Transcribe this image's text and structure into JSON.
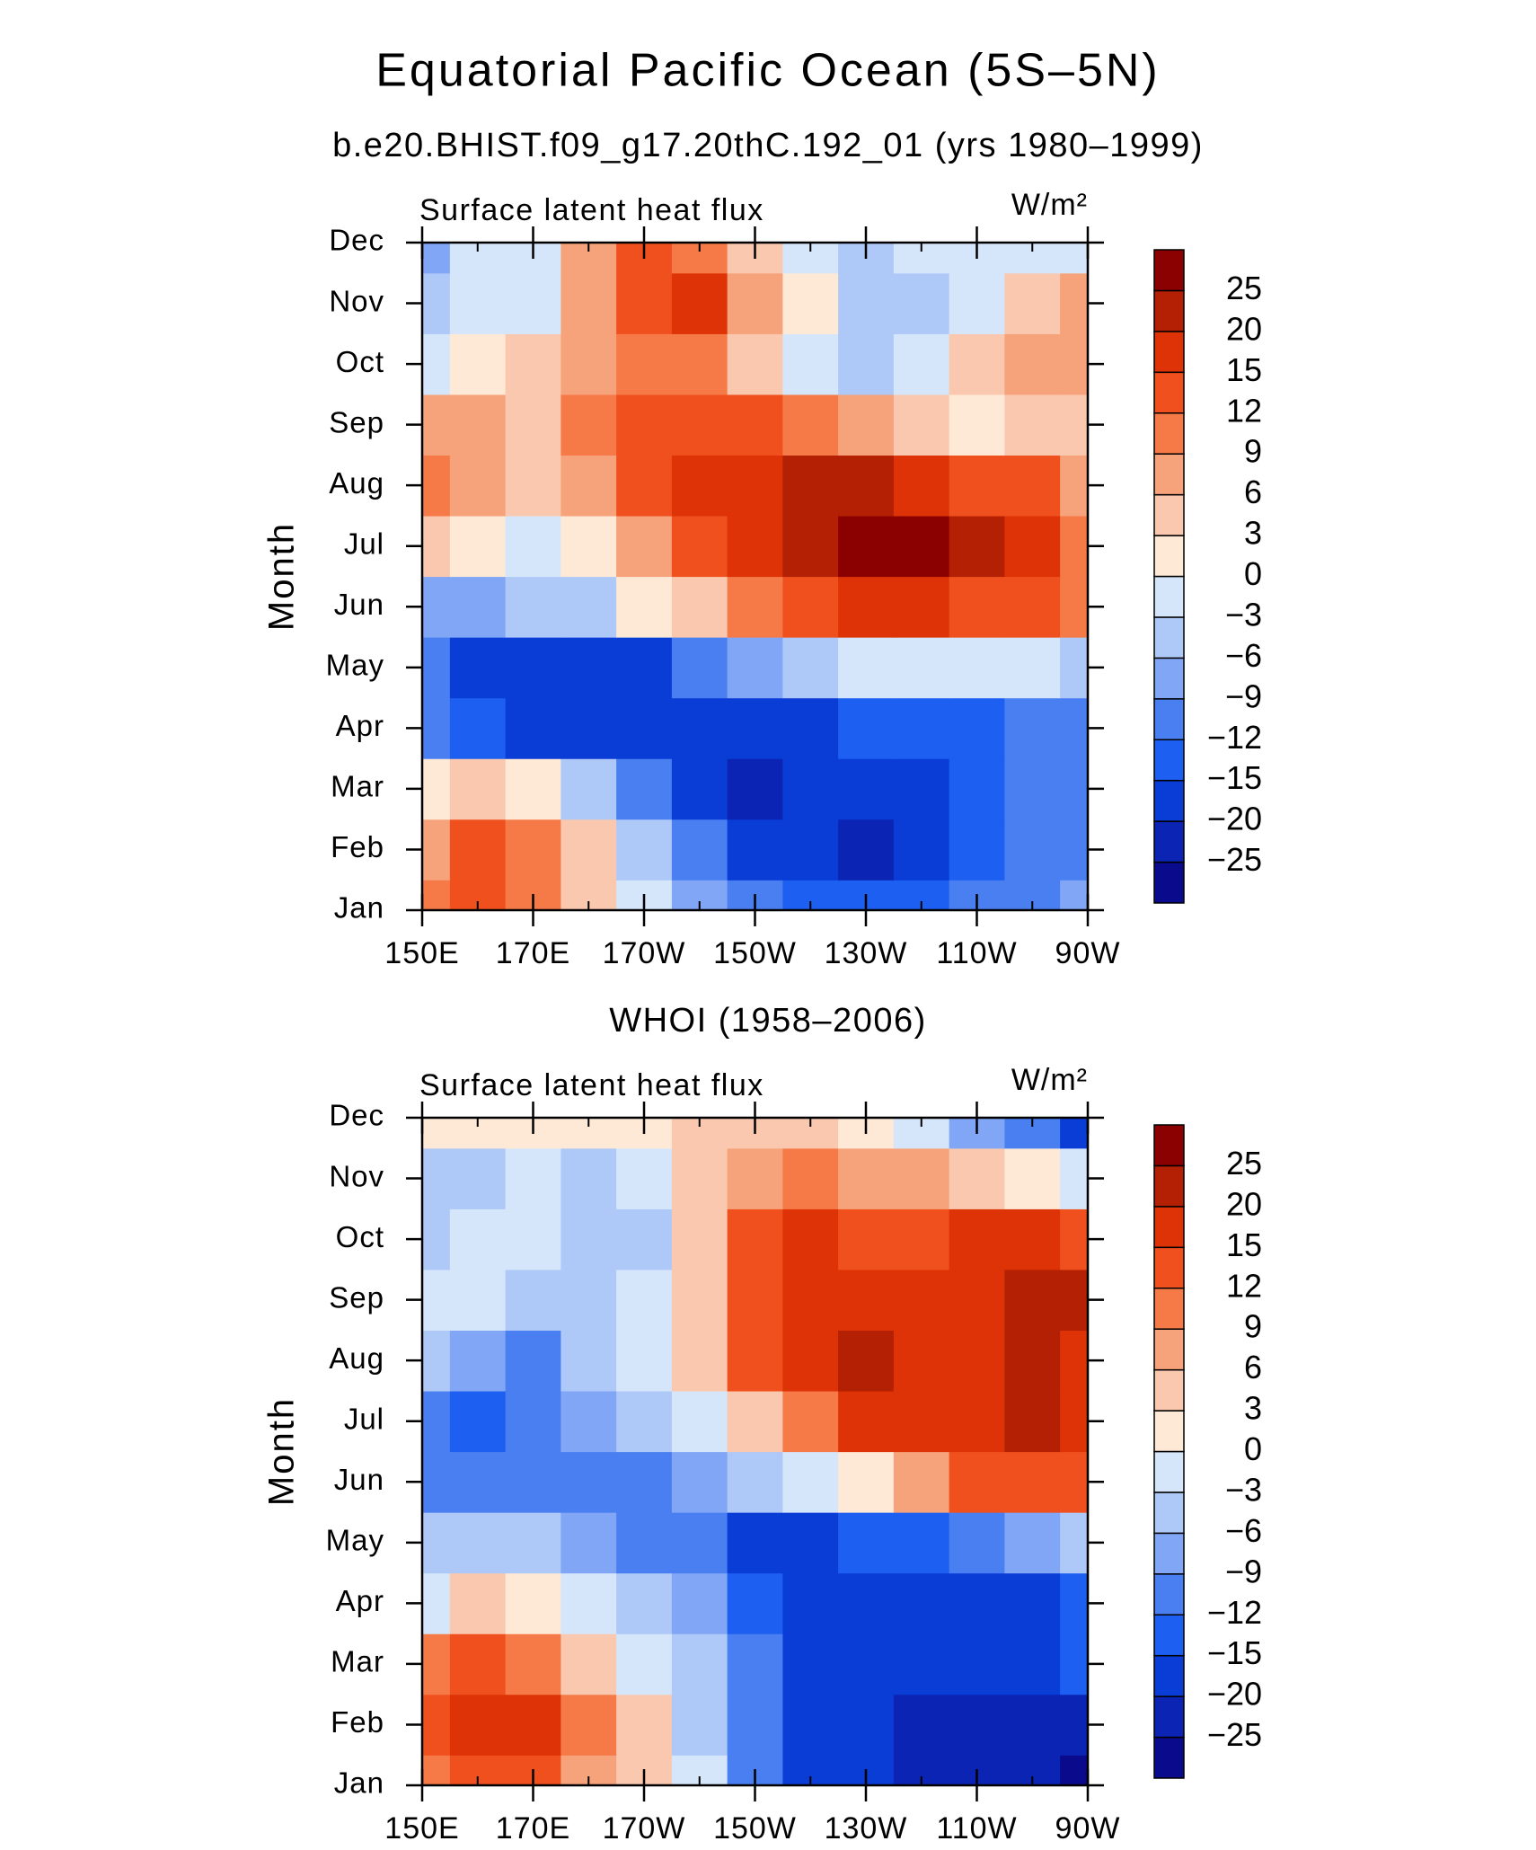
{
  "title": "Equatorial Pacific Ocean (5S–5N)",
  "chart_data": [
    {
      "type": "heatmap",
      "subtitle": "b.e20.BHIST.f09_g17.20thC.192_01 (yrs 1980–1999)",
      "left_label": "Surface latent heat flux",
      "units_label": "W/m²",
      "ylabel": "Month",
      "categories": [
        "Jan",
        "Feb",
        "Mar",
        "Apr",
        "May",
        "Jun",
        "Jul",
        "Aug",
        "Sep",
        "Oct",
        "Nov",
        "Dec"
      ],
      "x": [
        150,
        160,
        170,
        180,
        190,
        200,
        210,
        220,
        230,
        240,
        250,
        260,
        270
      ],
      "xlim": [
        150,
        270
      ],
      "xticks": [
        {
          "value": 150,
          "label": "150E"
        },
        {
          "value": 170,
          "label": "170E"
        },
        {
          "value": 190,
          "label": "170W"
        },
        {
          "value": 210,
          "label": "150W"
        },
        {
          "value": 230,
          "label": "130W"
        },
        {
          "value": 250,
          "label": "110W"
        },
        {
          "value": 270,
          "label": "90W"
        }
      ],
      "values": [
        [
          9,
          12,
          10,
          3,
          -3,
          -9,
          -12,
          -15,
          -15,
          -15,
          -12,
          -12,
          -9
        ],
        [
          6,
          12,
          9,
          3,
          -6,
          -12,
          -18,
          -20,
          -22,
          -18,
          -13,
          -12,
          -10
        ],
        [
          1,
          3,
          0,
          -6,
          -12,
          -18,
          -24,
          -20,
          -18,
          -16,
          -14,
          -12,
          -10
        ],
        [
          -12,
          -14,
          -16,
          -18,
          -20,
          -19,
          -18,
          -16,
          -15,
          -14,
          -13,
          -12,
          -11
        ],
        [
          -12,
          -16,
          -18,
          -19,
          -16,
          -12,
          -8,
          -4,
          -2,
          -3,
          -3,
          -3,
          -4
        ],
        [
          -8,
          -7,
          -6,
          -4,
          0,
          4,
          10,
          14,
          18,
          17,
          14,
          12,
          9
        ],
        [
          3,
          0,
          -1,
          2,
          6,
          12,
          16,
          22,
          26,
          26,
          21,
          16,
          10
        ],
        [
          10,
          6,
          5,
          8,
          14,
          15,
          17,
          20,
          21,
          18,
          14,
          12,
          8
        ],
        [
          6,
          7,
          5,
          9,
          12,
          13,
          12,
          10,
          6,
          3,
          1,
          5,
          3
        ],
        [
          -1,
          1,
          4,
          7,
          9,
          9,
          5,
          -1,
          -4,
          -2,
          4,
          6,
          8
        ],
        [
          -6,
          -2,
          -1,
          8,
          13,
          15,
          8,
          1,
          -5,
          -4,
          -1,
          4,
          6
        ],
        [
          -8,
          -3,
          -1,
          7,
          12,
          10,
          5,
          -2,
          -4,
          -2,
          -2,
          -1,
          -2
        ]
      ],
      "levels": [
        {
          "value": -25,
          "label": "−25"
        },
        {
          "value": -20,
          "label": "−20"
        },
        {
          "value": -15,
          "label": "−15"
        },
        {
          "value": -12,
          "label": "−12"
        },
        {
          "value": -9,
          "label": "−9"
        },
        {
          "value": -6,
          "label": "−6"
        },
        {
          "value": -3,
          "label": "−3"
        },
        0,
        3,
        6,
        9,
        12,
        15,
        20,
        25
      ],
      "colors": [
        "#0a0a8c",
        "#0b24b4",
        "#0a3cd6",
        "#1d5ff0",
        "#4a7ff2",
        "#80a6f5",
        "#aec8f7",
        "#d6e6fa",
        "#fde9d6",
        "#f9c8ae",
        "#f6a27a",
        "#f67a48",
        "#f0501e",
        "#dd3306",
        "#b32004",
        "#8b0000"
      ]
    },
    {
      "type": "heatmap",
      "subtitle": "WHOI (1958–2006)",
      "left_label": "Surface latent heat flux",
      "units_label": "W/m²",
      "ylabel": "Month",
      "categories": [
        "Jan",
        "Feb",
        "Mar",
        "Apr",
        "May",
        "Jun",
        "Jul",
        "Aug",
        "Sep",
        "Oct",
        "Nov",
        "Dec"
      ],
      "x": [
        150,
        160,
        170,
        180,
        190,
        200,
        210,
        220,
        230,
        240,
        250,
        260,
        270
      ],
      "xlim": [
        150,
        270
      ],
      "xticks": [
        {
          "value": 150,
          "label": "150E"
        },
        {
          "value": 170,
          "label": "170E"
        },
        {
          "value": 190,
          "label": "170W"
        },
        {
          "value": 210,
          "label": "150W"
        },
        {
          "value": 230,
          "label": "130W"
        },
        {
          "value": 250,
          "label": "110W"
        },
        {
          "value": 270,
          "label": "90W"
        }
      ],
      "values": [
        [
          10,
          14,
          12,
          8,
          3,
          -3,
          -10,
          -17,
          -20,
          -22,
          -22,
          -24,
          -26
        ],
        [
          12,
          17,
          15,
          10,
          3,
          -4,
          -12,
          -18,
          -19,
          -22,
          -22,
          -22,
          -21
        ],
        [
          10,
          12,
          10,
          5,
          -1,
          -6,
          -12,
          -16,
          -16,
          -18,
          -18,
          -16,
          -14
        ],
        [
          -1,
          3,
          0,
          -3,
          -6,
          -9,
          -15,
          -18,
          -18,
          -18,
          -19,
          -17,
          -14
        ],
        [
          -6,
          -5,
          -6,
          -8,
          -12,
          -12,
          -16,
          -17,
          -15,
          -13,
          -10,
          -8,
          -5
        ],
        [
          -10,
          -11,
          -12,
          -10,
          -12,
          -9,
          -6,
          -3,
          2,
          8,
          12,
          14,
          14
        ],
        [
          -12,
          -13,
          -12,
          -8,
          -4,
          -2,
          3,
          10,
          16,
          16,
          18,
          20,
          18
        ],
        [
          -6,
          -9,
          -11,
          -5,
          -2,
          3,
          12,
          18,
          20,
          17,
          18,
          20,
          18
        ],
        [
          -3,
          -2,
          -4,
          -4,
          -2,
          3,
          14,
          17,
          16,
          16,
          19,
          22,
          20
        ],
        [
          -4,
          -2,
          -3,
          -6,
          -4,
          3,
          12,
          16,
          14,
          12,
          15,
          16,
          14
        ],
        [
          -4,
          -4,
          -3,
          -4,
          -1,
          3,
          7,
          9,
          8,
          7,
          4,
          0,
          -3
        ],
        [
          2,
          1,
          2,
          1,
          2,
          3,
          4,
          3,
          2,
          -3,
          -8,
          -12,
          -16
        ]
      ],
      "levels": [
        {
          "value": -25,
          "label": "−25"
        },
        {
          "value": -20,
          "label": "−20"
        },
        {
          "value": -15,
          "label": "−15"
        },
        {
          "value": -12,
          "label": "−12"
        },
        {
          "value": -9,
          "label": "−9"
        },
        {
          "value": -6,
          "label": "−6"
        },
        {
          "value": -3,
          "label": "−3"
        },
        0,
        3,
        6,
        9,
        12,
        15,
        20,
        25
      ],
      "colors": [
        "#0a0a8c",
        "#0b24b4",
        "#0a3cd6",
        "#1d5ff0",
        "#4a7ff2",
        "#80a6f5",
        "#aec8f7",
        "#d6e6fa",
        "#fde9d6",
        "#f9c8ae",
        "#f6a27a",
        "#f67a48",
        "#f0501e",
        "#dd3306",
        "#b32004",
        "#8b0000"
      ]
    }
  ]
}
